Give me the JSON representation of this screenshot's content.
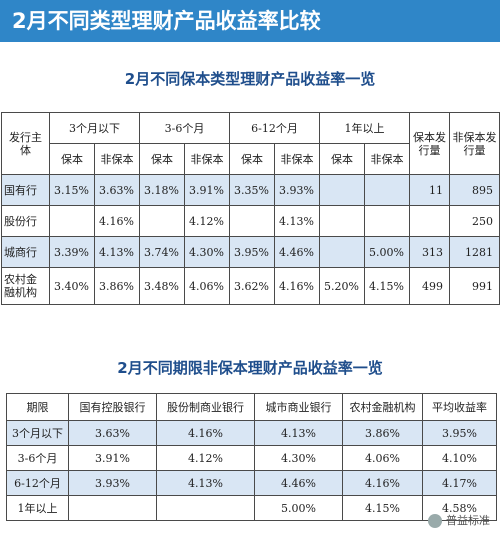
{
  "banner_title": "2月不同类型理财产品收益率比较",
  "table1": {
    "title": "2月不同保本类型理财产品收益率一览",
    "h_issuer": "发行主体",
    "groups": [
      "3个月以下",
      "3-6个月",
      "6-12个月",
      "1年以上"
    ],
    "h_guar_count": "保本发行量",
    "h_nonguar_count": "非保本发行量",
    "sub_guar": "保本",
    "sub_nonguar": "非保本",
    "rows": [
      {
        "name": "国有行",
        "v": [
          "3.15%",
          "3.63%",
          "3.18%",
          "3.91%",
          "3.35%",
          "3.93%",
          "",
          ""
        ],
        "gc": "11",
        "nc": "895"
      },
      {
        "name": "股份行",
        "v": [
          "",
          "4.16%",
          "",
          "4.12%",
          "",
          "4.13%",
          "",
          ""
        ],
        "gc": "",
        "nc": "250"
      },
      {
        "name": "城商行",
        "v": [
          "3.39%",
          "4.13%",
          "3.74%",
          "4.30%",
          "3.95%",
          "4.46%",
          "",
          "5.00%"
        ],
        "gc": "313",
        "nc": "1281"
      },
      {
        "name": "农村金融机构",
        "v": [
          "3.40%",
          "3.86%",
          "3.48%",
          "4.06%",
          "3.62%",
          "4.16%",
          "5.20%",
          "4.15%"
        ],
        "gc": "499",
        "nc": "991"
      }
    ]
  },
  "table2": {
    "title": "2月不同期限非保本理财产品收益率一览",
    "headers": [
      "期限",
      "国有控股银行",
      "股份制商业银行",
      "城市商业银行",
      "农村金融机构",
      "平均收益率"
    ],
    "rows": [
      [
        "3个月以下",
        "3.63%",
        "4.16%",
        "4.13%",
        "3.86%",
        "3.95%"
      ],
      [
        "3-6个月",
        "3.91%",
        "4.12%",
        "4.30%",
        "4.06%",
        "4.10%"
      ],
      [
        "6-12个月",
        "3.93%",
        "4.13%",
        "4.46%",
        "4.16%",
        "4.17%"
      ],
      [
        "1年以上",
        "",
        "",
        "5.00%",
        "4.15%",
        "4.58%"
      ]
    ]
  },
  "watermark": "普益标准"
}
